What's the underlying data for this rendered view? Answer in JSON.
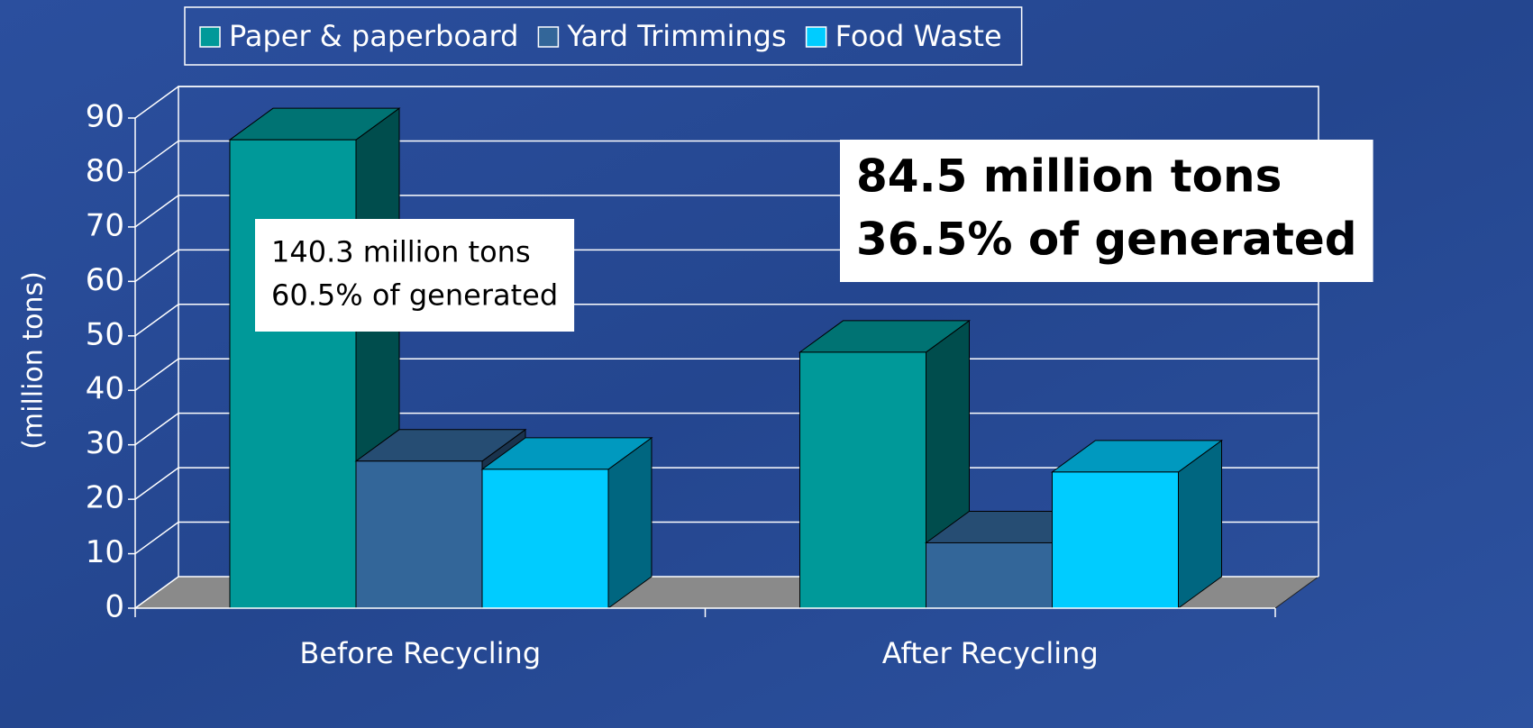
{
  "chart_data": {
    "type": "bar3d",
    "y_label": "(million tons)",
    "categories": [
      "Before Recycling",
      "After Recycling"
    ],
    "series": [
      {
        "name": "Paper & paperboard",
        "color": "#009999",
        "values": [
          86,
          47
        ]
      },
      {
        "name": "Yard Trimmings",
        "color": "#336699",
        "values": [
          27,
          12
        ]
      },
      {
        "name": "Food Waste",
        "color": "#00ccff",
        "values": [
          25.5,
          25
        ]
      }
    ],
    "ylim": [
      0,
      90
    ],
    "yticks": [
      0,
      10,
      20,
      30,
      40,
      50,
      60,
      70,
      80,
      90
    ],
    "grid": true,
    "legend": "top",
    "annotations": [
      {
        "lines": [
          "140.3 million tons",
          "60.5% of generated"
        ]
      },
      {
        "lines": [
          "84.5 million tons",
          "36.5% of generated"
        ]
      }
    ]
  }
}
